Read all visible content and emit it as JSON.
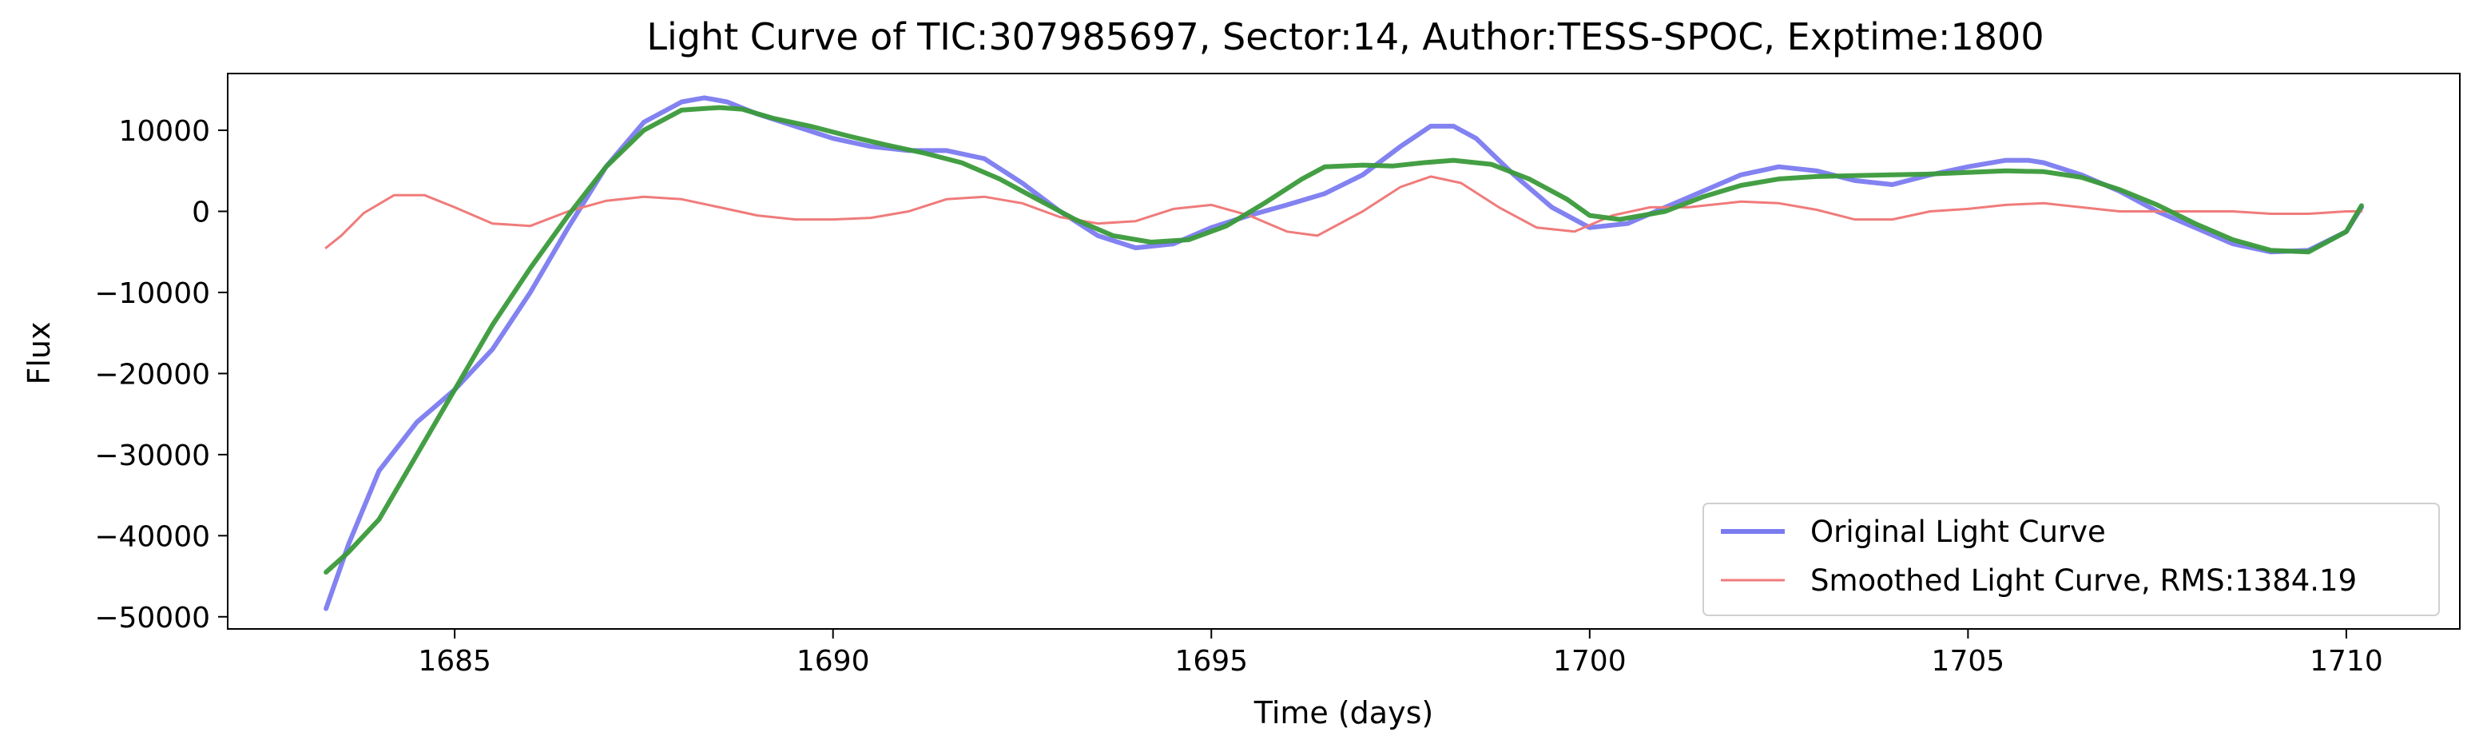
{
  "chart_data": {
    "type": "line",
    "title": "Light Curve of TIC:307985697, Sector:14, Author:TESS-SPOC, Exptime:1800",
    "xlabel": "Time (days)",
    "ylabel": "Flux",
    "xlim": [
      1682.0,
      1711.5
    ],
    "ylim": [
      -51500,
      17000
    ],
    "xticks": [
      1685,
      1690,
      1695,
      1700,
      1705,
      1710
    ],
    "yticks": [
      -50000,
      -40000,
      -30000,
      -20000,
      -10000,
      0,
      10000
    ],
    "xtick_labels": [
      "1685",
      "1690",
      "1695",
      "1700",
      "1705",
      "1710"
    ],
    "ytick_labels": [
      "−50000",
      "−40000",
      "−30000",
      "−20000",
      "−10000",
      "0",
      "10000"
    ],
    "grid": false,
    "legend_position": "lower-right",
    "series": [
      {
        "name": "Original Light Curve",
        "color": "#7b7bf0",
        "x": [
          1683.3,
          1683.6,
          1684.0,
          1684.5,
          1685.0,
          1685.5,
          1686.0,
          1686.5,
          1687.0,
          1687.5,
          1688.0,
          1688.3,
          1688.6,
          1689.0,
          1689.5,
          1690.0,
          1690.5,
          1691.0,
          1691.5,
          1692.0,
          1692.5,
          1693.0,
          1693.5,
          1694.0,
          1694.5,
          1695.0,
          1695.5,
          1696.0,
          1696.5,
          1697.0,
          1697.5,
          1697.9,
          1698.2,
          1698.5,
          1699.0,
          1699.5,
          1700.0,
          1700.5,
          1701.0,
          1701.5,
          1702.0,
          1702.5,
          1703.0,
          1703.5,
          1704.0,
          1704.5,
          1705.0,
          1705.5,
          1705.8,
          1706.0,
          1706.5,
          1707.0,
          1707.5,
          1708.0,
          1708.5,
          1709.0,
          1709.5,
          1710.0,
          1710.2
        ],
        "values": [
          -49000,
          -41000,
          -32000,
          -26000,
          -22000,
          -17000,
          -10000,
          -2000,
          5500,
          11000,
          13500,
          14000,
          13500,
          12000,
          10500,
          9000,
          8000,
          7500,
          7500,
          6500,
          3500,
          0,
          -3000,
          -4500,
          -4000,
          -2000,
          -500,
          800,
          2200,
          4500,
          8000,
          10500,
          10500,
          9000,
          4500,
          500,
          -2000,
          -1500,
          500,
          2500,
          4500,
          5500,
          5000,
          3800,
          3300,
          4500,
          5500,
          6300,
          6300,
          6000,
          4500,
          2500,
          0,
          -2000,
          -4000,
          -5000,
          -4800,
          -2500,
          500
        ]
      },
      {
        "name": "Smoothed Light Curve, RMS:1384.19",
        "color": "#f07b7b",
        "x": [
          1683.3,
          1683.5,
          1683.8,
          1684.2,
          1684.6,
          1685.0,
          1685.5,
          1686.0,
          1686.5,
          1687.0,
          1687.5,
          1688.0,
          1688.5,
          1689.0,
          1689.5,
          1690.0,
          1690.5,
          1691.0,
          1691.5,
          1692.0,
          1692.5,
          1693.0,
          1693.5,
          1694.0,
          1694.5,
          1695.0,
          1695.5,
          1696.0,
          1696.4,
          1697.0,
          1697.5,
          1697.9,
          1698.3,
          1698.8,
          1699.3,
          1699.8,
          1700.3,
          1700.8,
          1701.3,
          1702.0,
          1702.5,
          1703.0,
          1703.5,
          1704.0,
          1704.5,
          1705.0,
          1705.5,
          1706.0,
          1706.5,
          1707.0,
          1707.5,
          1708.0,
          1708.5,
          1709.0,
          1709.5,
          1710.0,
          1710.2
        ],
        "values": [
          -4500,
          -3000,
          -200,
          2000,
          2000,
          500,
          -1500,
          -1800,
          0,
          1300,
          1800,
          1500,
          500,
          -500,
          -1000,
          -1000,
          -800,
          0,
          1500,
          1800,
          1000,
          -700,
          -1500,
          -1200,
          300,
          800,
          -500,
          -2500,
          -3000,
          0,
          3000,
          4300,
          3500,
          500,
          -2000,
          -2500,
          -500,
          500,
          500,
          1200,
          1000,
          200,
          -1000,
          -1000,
          0,
          300,
          800,
          1000,
          500,
          0,
          0,
          0,
          0,
          -300,
          -300,
          0,
          0
        ]
      },
      {
        "name": "",
        "color": "#3a9a3a",
        "x": [
          1683.3,
          1683.6,
          1684.0,
          1684.5,
          1685.0,
          1685.5,
          1686.0,
          1686.5,
          1687.0,
          1687.5,
          1688.0,
          1688.5,
          1688.8,
          1689.2,
          1689.7,
          1690.2,
          1690.7,
          1691.2,
          1691.7,
          1692.2,
          1692.7,
          1693.2,
          1693.7,
          1694.2,
          1694.7,
          1695.2,
          1695.7,
          1696.2,
          1696.5,
          1697.0,
          1697.4,
          1697.8,
          1698.2,
          1698.7,
          1699.2,
          1699.7,
          1700.0,
          1700.4,
          1701.0,
          1701.5,
          1702.0,
          1702.5,
          1703.0,
          1703.5,
          1704.0,
          1704.5,
          1705.0,
          1705.5,
          1706.0,
          1706.5,
          1707.0,
          1707.5,
          1708.0,
          1708.5,
          1709.0,
          1709.5,
          1710.0,
          1710.2
        ],
        "values": [
          -44500,
          -42000,
          -38000,
          -30000,
          -22000,
          -14000,
          -7000,
          -500,
          5500,
          10000,
          12500,
          12800,
          12600,
          11500,
          10500,
          9300,
          8200,
          7200,
          6000,
          4000,
          1500,
          -1000,
          -3000,
          -3800,
          -3500,
          -1800,
          1000,
          4000,
          5500,
          5700,
          5600,
          6000,
          6300,
          5800,
          4000,
          1500,
          -500,
          -1000,
          0,
          1800,
          3200,
          4000,
          4300,
          4400,
          4500,
          4600,
          4800,
          5000,
          4900,
          4200,
          2700,
          800,
          -1500,
          -3500,
          -4800,
          -5000,
          -2500,
          700
        ]
      }
    ]
  }
}
